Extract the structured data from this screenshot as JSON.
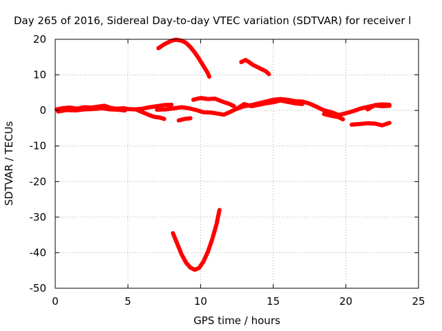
{
  "chart_data": {
    "type": "scatter",
    "title": "Day 265 of 2016, Sidereal Day-to-day VTEC variation (SDTVAR) for receiver l",
    "xlabel": "GPS time / hours",
    "ylabel": "SDTVAR / TECUs",
    "xlim": [
      0,
      25
    ],
    "ylim": [
      -50,
      20
    ],
    "xticks": [
      0,
      5,
      10,
      15,
      20,
      25
    ],
    "yticks": [
      -50,
      -40,
      -30,
      -20,
      -10,
      0,
      10,
      20
    ],
    "grid": true,
    "legend": "none",
    "color": "#ff0000",
    "series": [
      {
        "values": [
          [
            0.1,
            0.3
          ],
          [
            0.5,
            0.6
          ],
          [
            1,
            0.8
          ],
          [
            1.5,
            0.5
          ],
          [
            2,
            0.9
          ],
          [
            2.5,
            0.8
          ],
          [
            3,
            1.1
          ],
          [
            3.4,
            1.3
          ],
          [
            3.8,
            0.7
          ],
          [
            4.2,
            0.5
          ],
          [
            4.7,
            0.6
          ],
          [
            5,
            0.4
          ],
          [
            5.5,
            0.3
          ],
          [
            6,
            0.5
          ],
          [
            6.5,
            0.9
          ],
          [
            7,
            1.2
          ],
          [
            7.5,
            1.5
          ],
          [
            8,
            1.6
          ]
        ]
      },
      {
        "values": [
          [
            0.2,
            -0.3
          ],
          [
            0.8,
            0.1
          ],
          [
            1.4,
            0
          ],
          [
            2,
            0.3
          ],
          [
            2.6,
            0.4
          ],
          [
            3.2,
            0.6
          ],
          [
            3.8,
            0.3
          ],
          [
            4.3,
            0.2
          ],
          [
            4.8,
            0
          ]
        ]
      },
      {
        "values": [
          [
            5.6,
            0.2
          ],
          [
            6,
            -0.5
          ],
          [
            6.4,
            -1.2
          ],
          [
            6.8,
            -1.8
          ],
          [
            7.2,
            -2
          ],
          [
            7.5,
            -2.4
          ]
        ]
      },
      {
        "values": [
          [
            8.5,
            -2.8
          ],
          [
            8.9,
            -2.4
          ],
          [
            9.3,
            -2.2
          ]
        ]
      },
      {
        "values": [
          [
            7,
            0.2
          ],
          [
            7.6,
            0.3
          ],
          [
            8.2,
            0.6
          ],
          [
            8.7,
            0.9
          ],
          [
            9.2,
            0.6
          ],
          [
            9.7,
            0.1
          ],
          [
            10.2,
            -0.5
          ],
          [
            10.7,
            -0.6
          ],
          [
            11.2,
            -0.9
          ],
          [
            11.6,
            -1.2
          ],
          [
            12,
            -0.5
          ],
          [
            12.5,
            0.5
          ],
          [
            13,
            1.2
          ],
          [
            13.5,
            1.5
          ],
          [
            14,
            2
          ],
          [
            14.5,
            2.5
          ],
          [
            15,
            3
          ],
          [
            15.5,
            3.2
          ],
          [
            16,
            3
          ],
          [
            16.5,
            2.6
          ],
          [
            17,
            2.5
          ],
          [
            17.5,
            1.9
          ],
          [
            18,
            1
          ],
          [
            18.5,
            0
          ],
          [
            19,
            -0.5
          ],
          [
            19.5,
            -1.3
          ],
          [
            20,
            -0.8
          ],
          [
            20.5,
            -0.2
          ],
          [
            21,
            0.5
          ],
          [
            21.5,
            1
          ],
          [
            22,
            1.4
          ],
          [
            22.5,
            1.2
          ],
          [
            23,
            1.3
          ]
        ]
      },
      {
        "values": [
          [
            9.5,
            3
          ],
          [
            10,
            3.5
          ],
          [
            10.5,
            3.2
          ],
          [
            11,
            3.3
          ],
          [
            11.5,
            2.5
          ],
          [
            12,
            1.8
          ],
          [
            12.3,
            1.2
          ]
        ]
      },
      {
        "values": [
          [
            12.5,
            0.5
          ],
          [
            13,
            1.8
          ],
          [
            13.5,
            1.2
          ],
          [
            14,
            1.6
          ],
          [
            14.5,
            2
          ],
          [
            15,
            2.3
          ],
          [
            15.5,
            2.8
          ],
          [
            16,
            2.4
          ],
          [
            16.5,
            2
          ],
          [
            17,
            1.8
          ]
        ]
      },
      {
        "values": [
          [
            18.5,
            -1
          ],
          [
            19,
            -1.5
          ],
          [
            19.5,
            -1.9
          ],
          [
            19.8,
            -2.5
          ]
        ]
      },
      {
        "values": [
          [
            20.4,
            -4
          ],
          [
            21,
            -3.8
          ],
          [
            21.5,
            -3.6
          ],
          [
            22,
            -3.7
          ],
          [
            22.5,
            -4.2
          ],
          [
            23,
            -3.5
          ]
        ]
      },
      {
        "values": [
          [
            21.5,
            0.3
          ],
          [
            22,
            1.5
          ],
          [
            22.5,
            1.7
          ],
          [
            23,
            1.6
          ]
        ]
      },
      {
        "values": [
          [
            7.1,
            17.5
          ],
          [
            7.5,
            18.6
          ],
          [
            8,
            19.6
          ],
          [
            8.3,
            19.9
          ],
          [
            8.7,
            19.6
          ],
          [
            9,
            19
          ],
          [
            9.3,
            17.8
          ],
          [
            9.6,
            16.3
          ],
          [
            9.9,
            14.5
          ],
          [
            10.2,
            12.5
          ],
          [
            10.5,
            10.5
          ],
          [
            10.6,
            9.5
          ]
        ]
      },
      {
        "values": [
          [
            12.8,
            13.6
          ],
          [
            13.1,
            14.2
          ],
          [
            13.3,
            13.7
          ],
          [
            13.6,
            12.8
          ],
          [
            13.9,
            12.2
          ],
          [
            14.2,
            11.6
          ],
          [
            14.5,
            11
          ],
          [
            14.7,
            10.2
          ]
        ]
      },
      {
        "values": [
          [
            8.1,
            -34.5
          ],
          [
            8.4,
            -37.5
          ],
          [
            8.7,
            -40.5
          ],
          [
            9,
            -42.8
          ],
          [
            9.3,
            -44.2
          ],
          [
            9.6,
            -44.8
          ],
          [
            9.9,
            -44.3
          ],
          [
            10.2,
            -42.5
          ],
          [
            10.5,
            -39.8
          ],
          [
            10.8,
            -36.3
          ],
          [
            11.1,
            -32
          ],
          [
            11.3,
            -28
          ]
        ]
      }
    ]
  }
}
